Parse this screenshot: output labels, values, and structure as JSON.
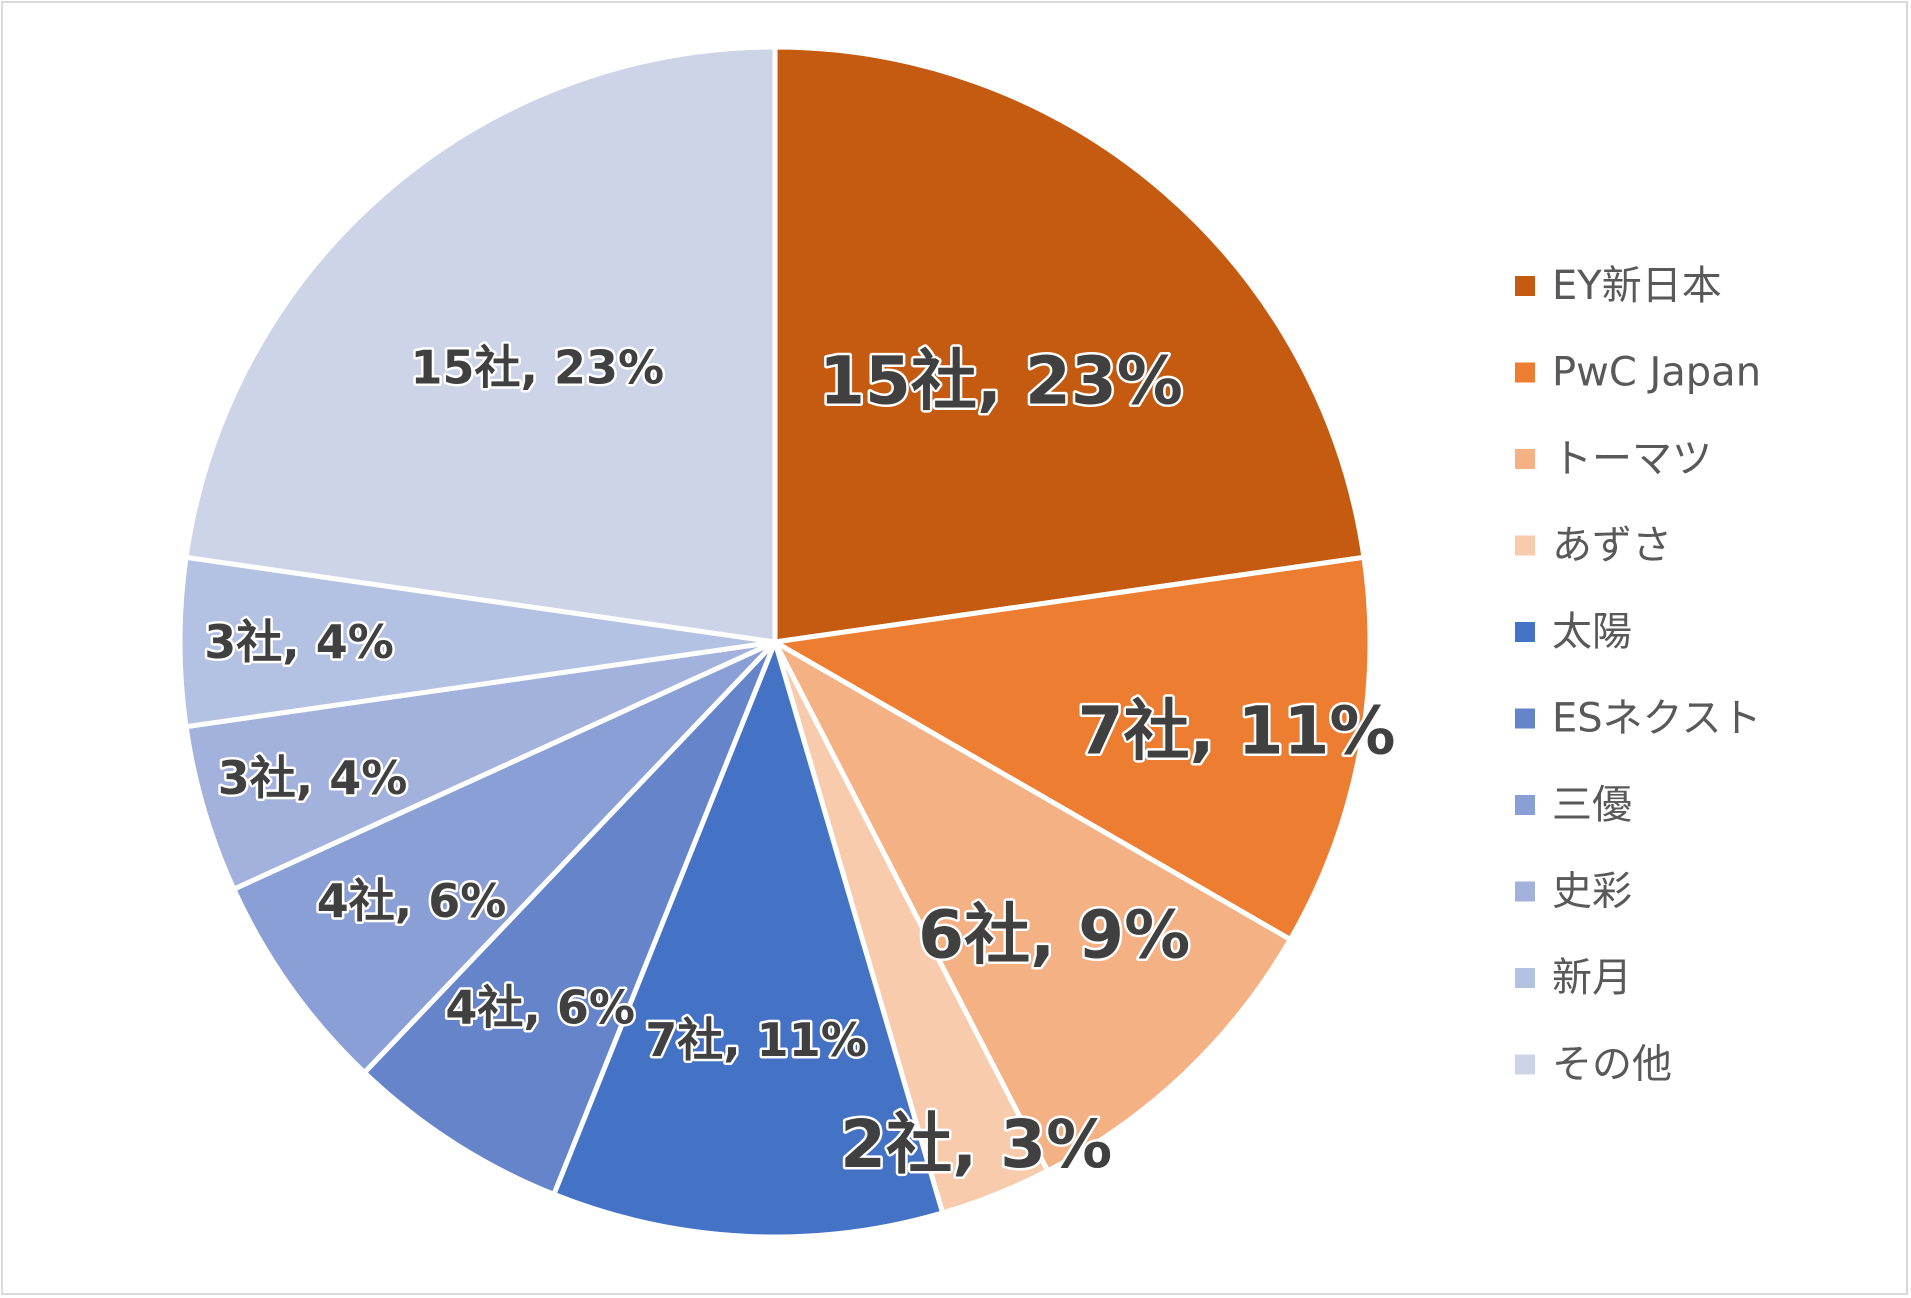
{
  "chart_data": {
    "type": "pie",
    "title": "",
    "start_angle_deg": 0,
    "direction": "clockwise",
    "slices": [
      {
        "name": "EY新日本",
        "count": 15,
        "percent": 23,
        "label": "15社, 23%",
        "color": "#C55A11"
      },
      {
        "name": "PwC Japan",
        "count": 7,
        "percent": 11,
        "label": "7社, 11%",
        "color": "#ED7D31"
      },
      {
        "name": "トーマツ",
        "count": 6,
        "percent": 9,
        "label": "6社, 9%",
        "color": "#F4B183"
      },
      {
        "name": "あずさ",
        "count": 2,
        "percent": 3,
        "label": "2社, 3%",
        "color": "#F8CBAD"
      },
      {
        "name": "太陽",
        "count": 7,
        "percent": 11,
        "label": "7社, 11%",
        "color": "#4472C4"
      },
      {
        "name": "ESネクスト",
        "count": 4,
        "percent": 6,
        "label": "4社, 6%",
        "color": "#6684CA"
      },
      {
        "name": "三優",
        "count": 4,
        "percent": 6,
        "label": "4社, 6%",
        "color": "#8A9FD5"
      },
      {
        "name": "史彩",
        "count": 3,
        "percent": 4,
        "label": "3社, 4%",
        "color": "#A2B2DD"
      },
      {
        "name": "新月",
        "count": 3,
        "percent": 4,
        "label": "3社, 4%",
        "color": "#B3C1E3"
      },
      {
        "name": "その他",
        "count": 15,
        "percent": 23,
        "label": "15社, 23%",
        "color": "#CDD4E8"
      }
    ],
    "legend_position": "right"
  }
}
